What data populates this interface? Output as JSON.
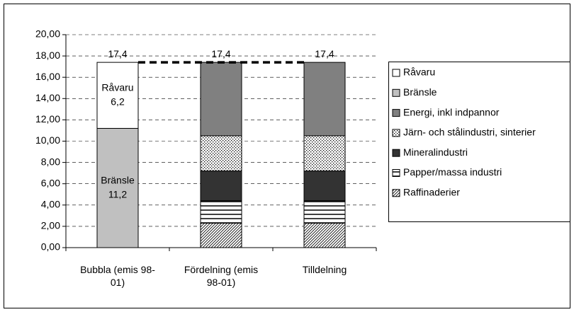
{
  "chart_data": {
    "type": "stacked_bar",
    "categories": [
      "Bubbla (emis 98-01)",
      "Fördelning (emis 98-01)",
      "Tilldelning"
    ],
    "series": [
      {
        "name": "Råvaru",
        "color": "#ffffff",
        "values": [
          6.2,
          null,
          null
        ],
        "value_labels": [
          "6,2",
          null,
          null
        ]
      },
      {
        "name": "Bränsle",
        "color": "#c0c0c0",
        "values": [
          11.2,
          null,
          null
        ],
        "value_labels": [
          "11,2",
          null,
          null
        ]
      },
      {
        "name": "Energi, inkl indpannor",
        "color": "#808080",
        "values": [
          null,
          6.9,
          6.9
        ]
      },
      {
        "name": "Järn- och stålindustri, sinterier",
        "color": "#ffffff",
        "pattern": "dots",
        "values": [
          null,
          3.3,
          3.3
        ]
      },
      {
        "name": "Mineralindustri",
        "color": "#333333",
        "values": [
          null,
          2.8,
          2.8
        ]
      },
      {
        "name": "Papper/massa industri",
        "color": "#ffffff",
        "pattern": "horizontal",
        "values": [
          null,
          2.1,
          2.1
        ]
      },
      {
        "name": "Raffinaderier",
        "color": "#ffffff",
        "pattern": "diagonal",
        "values": [
          null,
          2.3,
          2.3
        ]
      }
    ],
    "totals": {
      "values": [
        17.4,
        17.4,
        17.4
      ],
      "value_labels": [
        "17,4",
        "17,4",
        "17,4"
      ]
    },
    "ylim": [
      0,
      20
    ],
    "yticks": [
      {
        "value": 0,
        "label": "0,00"
      },
      {
        "value": 2,
        "label": "2,00"
      },
      {
        "value": 4,
        "label": "4,00"
      },
      {
        "value": 6,
        "label": "6,00"
      },
      {
        "value": 8,
        "label": "8,00"
      },
      {
        "value": 10,
        "label": "10,00"
      },
      {
        "value": 12,
        "label": "12,00"
      },
      {
        "value": 14,
        "label": "14,00"
      },
      {
        "value": 16,
        "label": "16,00"
      },
      {
        "value": 18,
        "label": "18,00"
      },
      {
        "value": 20,
        "label": "20,00"
      }
    ],
    "grid": true,
    "legend": "right"
  }
}
